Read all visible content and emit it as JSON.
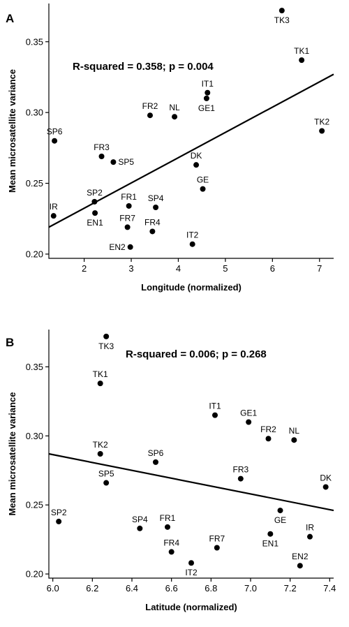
{
  "chart_data": [
    {
      "panel": "A",
      "type": "scatter",
      "annotation": "R-squared = 0.358; p = 0.004",
      "xlabel": "Longitude (normalized)",
      "ylabel": "Mean microsatellite variance",
      "xlim": [
        1.25,
        7.3
      ],
      "ylim": [
        0.197,
        0.377
      ],
      "xticks": [
        2,
        3,
        4,
        5,
        6,
        7
      ],
      "yticks": [
        0.2,
        0.25,
        0.3,
        0.35
      ],
      "xtick_labels": [
        "2",
        "3",
        "4",
        "5",
        "6",
        "7"
      ],
      "ytick_labels": [
        "0.20",
        "0.25",
        "0.30",
        "0.35"
      ],
      "grid": false,
      "fit_line": {
        "x": [
          1.25,
          7.3
        ],
        "y": [
          0.219,
          0.327
        ]
      },
      "points": [
        {
          "label": "TK3",
          "x": 6.2,
          "y": 0.372,
          "pos": "below"
        },
        {
          "label": "TK1",
          "x": 6.62,
          "y": 0.337,
          "pos": "above"
        },
        {
          "label": "TK2",
          "x": 7.05,
          "y": 0.287,
          "pos": "above"
        },
        {
          "label": "IT1",
          "x": 4.62,
          "y": 0.314,
          "pos": "above"
        },
        {
          "label": "GE1",
          "x": 4.6,
          "y": 0.31,
          "pos": "below"
        },
        {
          "label": "FR2",
          "x": 3.4,
          "y": 0.298,
          "pos": "above"
        },
        {
          "label": "NL",
          "x": 3.92,
          "y": 0.297,
          "pos": "above"
        },
        {
          "label": "SP6",
          "x": 1.37,
          "y": 0.28,
          "pos": "above"
        },
        {
          "label": "FR3",
          "x": 2.37,
          "y": 0.269,
          "pos": "above"
        },
        {
          "label": "SP5",
          "x": 2.62,
          "y": 0.265,
          "pos": "right"
        },
        {
          "label": "DK",
          "x": 4.38,
          "y": 0.263,
          "pos": "above"
        },
        {
          "label": "GE",
          "x": 4.52,
          "y": 0.246,
          "pos": "above"
        },
        {
          "label": "SP2",
          "x": 2.22,
          "y": 0.237,
          "pos": "above"
        },
        {
          "label": "IR",
          "x": 1.35,
          "y": 0.227,
          "pos": "above"
        },
        {
          "label": "FR1",
          "x": 2.95,
          "y": 0.234,
          "pos": "above"
        },
        {
          "label": "SP4",
          "x": 3.52,
          "y": 0.233,
          "pos": "above"
        },
        {
          "label": "EN1",
          "x": 2.23,
          "y": 0.229,
          "pos": "below"
        },
        {
          "label": "FR7",
          "x": 2.92,
          "y": 0.219,
          "pos": "above"
        },
        {
          "label": "FR4",
          "x": 3.45,
          "y": 0.216,
          "pos": "above"
        },
        {
          "label": "IT2",
          "x": 4.3,
          "y": 0.207,
          "pos": "above"
        },
        {
          "label": "EN2",
          "x": 2.98,
          "y": 0.205,
          "pos": "left"
        }
      ]
    },
    {
      "panel": "B",
      "type": "scatter",
      "annotation": "R-squared = 0.006; p = 0.268",
      "xlabel": "Latitude (normalized)",
      "ylabel": "Mean microsatellite variance",
      "xlim": [
        5.98,
        7.42
      ],
      "ylim": [
        0.197,
        0.377
      ],
      "xticks": [
        6.0,
        6.2,
        6.4,
        6.6,
        6.8,
        7.0,
        7.2,
        7.4
      ],
      "yticks": [
        0.2,
        0.25,
        0.3,
        0.35
      ],
      "xtick_labels": [
        "6.0",
        "6.2",
        "6.4",
        "6.6",
        "6.8",
        "7.0",
        "7.2",
        "7.4"
      ],
      "ytick_labels": [
        "0.20",
        "0.25",
        "0.30",
        "0.35"
      ],
      "grid": false,
      "fit_line": {
        "x": [
          5.98,
          7.42
        ],
        "y": [
          0.287,
          0.246
        ]
      },
      "points": [
        {
          "label": "TK3",
          "x": 6.27,
          "y": 0.372,
          "pos": "below"
        },
        {
          "label": "TK1",
          "x": 6.24,
          "y": 0.338,
          "pos": "above"
        },
        {
          "label": "IT1",
          "x": 6.82,
          "y": 0.315,
          "pos": "above"
        },
        {
          "label": "GE1",
          "x": 6.99,
          "y": 0.31,
          "pos": "above"
        },
        {
          "label": "FR2",
          "x": 7.09,
          "y": 0.298,
          "pos": "above"
        },
        {
          "label": "NL",
          "x": 7.22,
          "y": 0.297,
          "pos": "above"
        },
        {
          "label": "TK2",
          "x": 6.24,
          "y": 0.287,
          "pos": "above"
        },
        {
          "label": "SP6",
          "x": 6.52,
          "y": 0.281,
          "pos": "above"
        },
        {
          "label": "FR3",
          "x": 6.95,
          "y": 0.269,
          "pos": "above"
        },
        {
          "label": "SP5",
          "x": 6.27,
          "y": 0.266,
          "pos": "above"
        },
        {
          "label": "DK",
          "x": 7.38,
          "y": 0.263,
          "pos": "above"
        },
        {
          "label": "SP2",
          "x": 6.03,
          "y": 0.238,
          "pos": "above"
        },
        {
          "label": "GE",
          "x": 7.15,
          "y": 0.246,
          "pos": "below"
        },
        {
          "label": "SP4",
          "x": 6.44,
          "y": 0.233,
          "pos": "above"
        },
        {
          "label": "FR1",
          "x": 6.58,
          "y": 0.234,
          "pos": "above"
        },
        {
          "label": "IR",
          "x": 7.3,
          "y": 0.227,
          "pos": "above"
        },
        {
          "label": "EN1",
          "x": 7.1,
          "y": 0.229,
          "pos": "below"
        },
        {
          "label": "FR4",
          "x": 6.6,
          "y": 0.216,
          "pos": "above"
        },
        {
          "label": "FR7",
          "x": 6.83,
          "y": 0.219,
          "pos": "above"
        },
        {
          "label": "IT2",
          "x": 6.7,
          "y": 0.208,
          "pos": "below"
        },
        {
          "label": "EN2",
          "x": 7.25,
          "y": 0.206,
          "pos": "above"
        }
      ]
    }
  ]
}
